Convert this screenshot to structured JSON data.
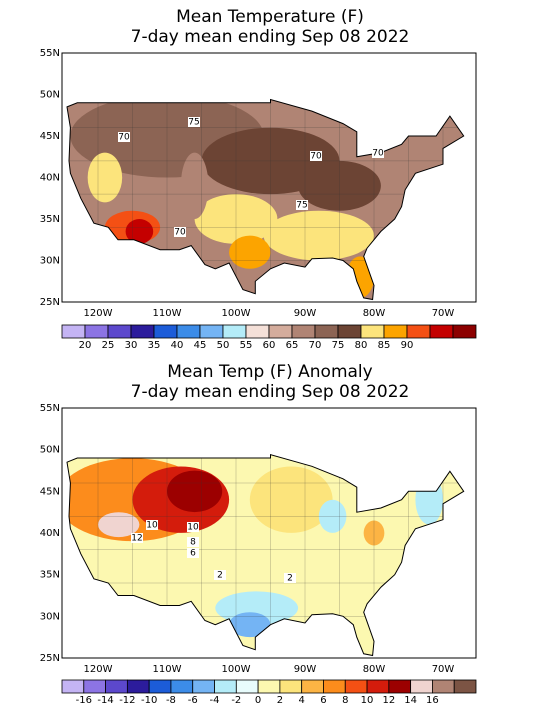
{
  "panels": [
    {
      "title": "Mean Temperature (F)",
      "subtitle": "7-day mean ending Sep 08 2022",
      "lat_labels": [
        "55N",
        "50N",
        "45N",
        "40N",
        "35N",
        "30N",
        "25N"
      ],
      "lon_labels": [
        "120W",
        "110W",
        "100W",
        "90W",
        "80W",
        "70W"
      ],
      "colorbar": {
        "colors": [
          "#c4b4f4",
          "#8c74e4",
          "#5c48cc",
          "#2c1c9c",
          "#1c5cd8",
          "#3c8ce8",
          "#74b4f4",
          "#b4ecf8",
          "#f4e0d8",
          "#d4ac9c",
          "#b08474",
          "#8c6454",
          "#6c4434",
          "#fce47c",
          "#fca400",
          "#f45014",
          "#c40000",
          "#8c0000"
        ],
        "labels": [
          "20",
          "25",
          "30",
          "35",
          "40",
          "45",
          "50",
          "55",
          "60",
          "65",
          "70",
          "75",
          "80",
          "85",
          "90"
        ]
      },
      "contour_labels": [
        "70",
        "75",
        "70",
        "70",
        "75",
        "70"
      ]
    },
    {
      "title": "Mean Temp (F) Anomaly",
      "subtitle": "7-day mean ending Sep 08 2022",
      "lat_labels": [
        "55N",
        "50N",
        "45N",
        "40N",
        "35N",
        "30N",
        "25N"
      ],
      "lon_labels": [
        "120W",
        "110W",
        "100W",
        "90W",
        "80W",
        "70W"
      ],
      "colorbar": {
        "colors": [
          "#c4b4f4",
          "#8c74e4",
          "#5c48cc",
          "#2c1c9c",
          "#1c5cd8",
          "#3c8ce8",
          "#74b4f4",
          "#b4ecf8",
          "#e8fcfc",
          "#fcf8b0",
          "#fce47c",
          "#fcb444",
          "#fc8c1c",
          "#f45014",
          "#d41c0c",
          "#9c0000",
          "#f0d4d0",
          "#b08474",
          "#7c5444"
        ],
        "labels": [
          "-16",
          "-14",
          "-12",
          "-10",
          "-8",
          "-6",
          "-4",
          "-2",
          "0",
          "2",
          "4",
          "6",
          "8",
          "10",
          "12",
          "14",
          "16"
        ]
      },
      "contour_labels": [
        "10",
        "12",
        "10",
        "8",
        "6",
        "2",
        "2"
      ]
    }
  ]
}
